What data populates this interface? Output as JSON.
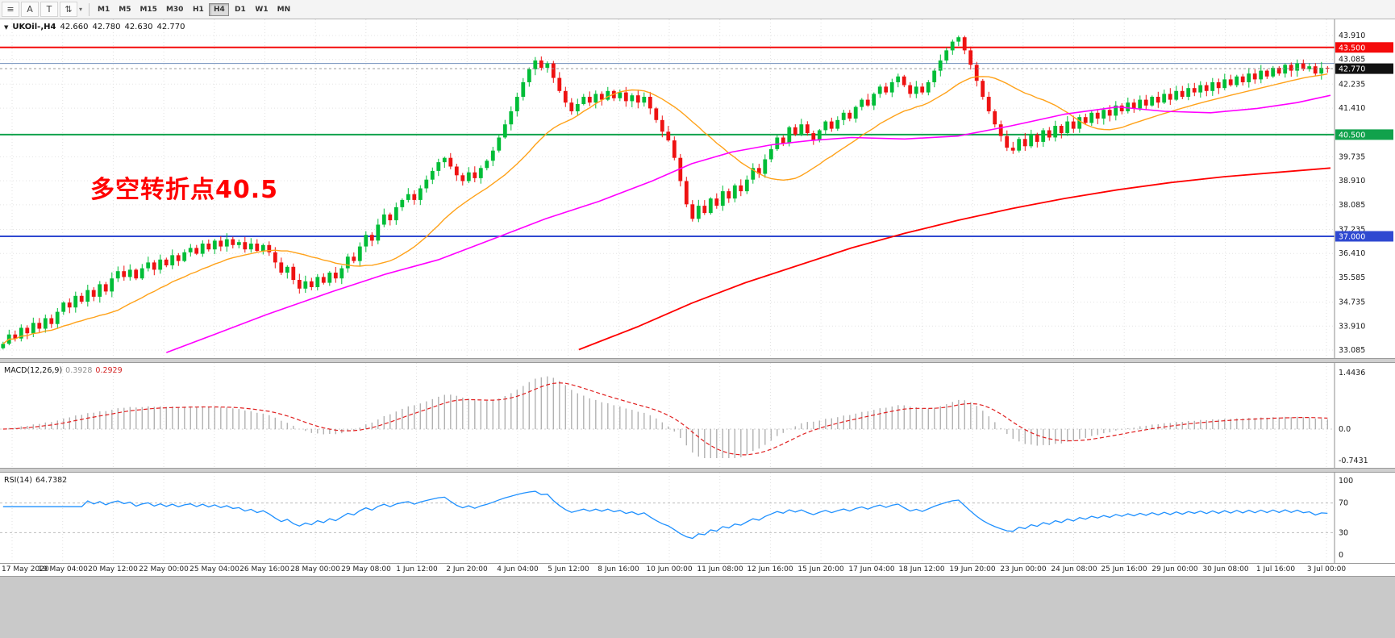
{
  "toolbar": {
    "icons": [
      {
        "name": "menu-icon",
        "glyph": "≡"
      },
      {
        "name": "cursor-icon",
        "glyph": "A"
      },
      {
        "name": "text-icon",
        "glyph": "T"
      },
      {
        "name": "indicators-icon",
        "glyph": "⇅"
      }
    ],
    "caret": "▾",
    "timeframes": [
      "M1",
      "M5",
      "M15",
      "M30",
      "H1",
      "H4",
      "D1",
      "W1",
      "MN"
    ],
    "active_timeframe": "H4"
  },
  "symbol": {
    "prefix": "▼",
    "name": "UKOil-,H4",
    "open": "42.660",
    "high": "42.780",
    "low": "42.630",
    "close": "42.770"
  },
  "chart": {
    "annotation": "多空转折点40.5",
    "price_max": 43.91,
    "price_min": 33.085,
    "axis_labels": [
      43.91,
      43.085,
      42.235,
      41.41,
      39.735,
      38.91,
      38.085,
      37.235,
      36.41,
      35.585,
      34.735,
      33.91,
      33.085
    ],
    "hlines": [
      {
        "price": 43.5,
        "label": "43.500",
        "color": "#f40b0b",
        "width": 2
      },
      {
        "price": 42.95,
        "label": "",
        "color": "#6b8cba",
        "width": 1
      },
      {
        "price": 40.5,
        "label": "40.500",
        "color": "#11a24c",
        "width": 2
      },
      {
        "price": 37.0,
        "label": "37.000",
        "color": "#2f49d1",
        "width": 2
      }
    ],
    "current_price": {
      "value": 42.77,
      "label": "42.770",
      "badge_color": "#111111"
    }
  },
  "chart_data": {
    "type": "candlestick",
    "symbol": "UKOil-",
    "timeframe": "H4",
    "price_axis_range": [
      33.085,
      43.91
    ],
    "closes": [
      33.3,
      33.62,
      33.48,
      33.85,
      33.66,
      34.02,
      33.82,
      34.18,
      33.98,
      34.4,
      34.72,
      34.55,
      34.95,
      34.75,
      35.15,
      34.92,
      35.35,
      35.1,
      35.55,
      35.8,
      35.6,
      35.85,
      35.55,
      35.9,
      36.1,
      35.85,
      36.2,
      36.0,
      36.35,
      36.15,
      36.45,
      36.6,
      36.4,
      36.75,
      36.55,
      36.85,
      36.65,
      36.9,
      36.7,
      36.8,
      36.55,
      36.75,
      36.5,
      36.7,
      36.45,
      36.1,
      35.75,
      35.95,
      35.5,
      35.2,
      35.45,
      35.25,
      35.6,
      35.4,
      35.75,
      35.55,
      35.9,
      36.3,
      36.15,
      36.65,
      37.05,
      36.85,
      37.4,
      37.75,
      37.55,
      38.0,
      38.25,
      38.45,
      38.25,
      38.65,
      38.95,
      39.25,
      39.55,
      39.7,
      39.4,
      39.1,
      38.9,
      39.2,
      39.0,
      39.35,
      39.6,
      39.95,
      40.4,
      40.85,
      41.3,
      41.8,
      42.3,
      42.75,
      43.05,
      42.8,
      42.95,
      42.45,
      42.0,
      41.6,
      41.3,
      41.55,
      41.8,
      41.6,
      41.9,
      41.7,
      42.0,
      41.75,
      41.95,
      41.65,
      41.85,
      41.6,
      41.8,
      41.4,
      41.0,
      40.6,
      40.3,
      39.7,
      38.9,
      38.1,
      37.6,
      38.05,
      37.8,
      38.3,
      38.05,
      38.55,
      38.3,
      38.75,
      38.55,
      38.95,
      39.35,
      39.15,
      39.65,
      40.0,
      40.4,
      40.2,
      40.75,
      40.5,
      40.85,
      40.55,
      40.3,
      40.65,
      40.95,
      40.7,
      41.0,
      41.25,
      41.05,
      41.45,
      41.7,
      41.5,
      41.9,
      42.15,
      41.95,
      42.3,
      42.5,
      42.2,
      41.9,
      42.15,
      41.95,
      42.3,
      42.7,
      43.05,
      43.4,
      43.7,
      43.85,
      43.4,
      42.9,
      42.35,
      41.8,
      41.3,
      40.85,
      40.45,
      40.05,
      39.95,
      40.35,
      40.1,
      40.5,
      40.25,
      40.65,
      40.4,
      40.8,
      40.55,
      40.95,
      40.7,
      41.1,
      40.9,
      41.25,
      41.05,
      41.35,
      41.15,
      41.5,
      41.3,
      41.6,
      41.4,
      41.7,
      41.5,
      41.8,
      41.6,
      41.9,
      41.7,
      42.0,
      41.8,
      42.1,
      41.95,
      42.2,
      42.0,
      42.3,
      42.1,
      42.4,
      42.2,
      42.5,
      42.3,
      42.6,
      42.4,
      42.7,
      42.5,
      42.8,
      42.6,
      42.9,
      42.7,
      42.95,
      42.75,
      42.85,
      42.6,
      42.8,
      42.77
    ],
    "candle_up_color": "#00bd37",
    "candle_down_color": "#ee1212",
    "overlays": {
      "ma_fast": {
        "color": "#ffa21a",
        "period": 20
      },
      "ma_medium": {
        "color": "#ff00ff",
        "points": [
          [
            0.125,
            33.0
          ],
          [
            0.16,
            33.6
          ],
          [
            0.2,
            34.3
          ],
          [
            0.25,
            35.1
          ],
          [
            0.29,
            35.7
          ],
          [
            0.33,
            36.2
          ],
          [
            0.37,
            36.9
          ],
          [
            0.41,
            37.6
          ],
          [
            0.45,
            38.2
          ],
          [
            0.49,
            38.9
          ],
          [
            0.52,
            39.5
          ],
          [
            0.55,
            39.9
          ],
          [
            0.58,
            40.15
          ],
          [
            0.61,
            40.3
          ],
          [
            0.64,
            40.4
          ],
          [
            0.68,
            40.35
          ],
          [
            0.72,
            40.45
          ],
          [
            0.76,
            40.8
          ],
          [
            0.8,
            41.2
          ],
          [
            0.84,
            41.45
          ],
          [
            0.875,
            41.3
          ],
          [
            0.91,
            41.25
          ],
          [
            0.945,
            41.4
          ],
          [
            0.975,
            41.6
          ],
          [
            1.0,
            41.85
          ]
        ]
      },
      "ma_slow": {
        "color": "#ff0000",
        "points": [
          [
            0.435,
            33.1
          ],
          [
            0.48,
            33.9
          ],
          [
            0.52,
            34.7
          ],
          [
            0.56,
            35.4
          ],
          [
            0.6,
            36.0
          ],
          [
            0.64,
            36.6
          ],
          [
            0.68,
            37.1
          ],
          [
            0.72,
            37.55
          ],
          [
            0.76,
            37.95
          ],
          [
            0.8,
            38.3
          ],
          [
            0.84,
            38.6
          ],
          [
            0.88,
            38.85
          ],
          [
            0.92,
            39.05
          ],
          [
            0.96,
            39.2
          ],
          [
            1.0,
            39.35
          ]
        ]
      }
    },
    "macd": {
      "label": "MACD(12,26,9)",
      "value_main": "0.3928",
      "value_signal": "0.2929",
      "fast": 12,
      "slow": 26,
      "signal": 9,
      "axis_max": 1.4436,
      "axis_min": -0.7431,
      "axis_labels": [
        "1.4436",
        "0.0",
        "-0.7431"
      ],
      "hist_color": "#b2b2b2",
      "signal_color": "#e02020"
    },
    "rsi": {
      "label": "RSI(14)",
      "value": "64.7382",
      "period": 14,
      "levels": [
        70,
        30
      ],
      "axis_labels": [
        "100",
        "70",
        "30",
        "0"
      ],
      "line_color": "#1e90ff"
    }
  },
  "time_axis": [
    "17 May 2020",
    "19 May 04:00",
    "20 May 12:00",
    "22 May 00:00",
    "25 May 04:00",
    "26 May 16:00",
    "28 May 00:00",
    "29 May 08:00",
    "1 Jun 12:00",
    "2 Jun 20:00",
    "4 Jun 04:00",
    "5 Jun 12:00",
    "8 Jun 16:00",
    "10 Jun 00:00",
    "11 Jun 08:00",
    "12 Jun 16:00",
    "15 Jun 20:00",
    "17 Jun 04:00",
    "18 Jun 12:00",
    "19 Jun 20:00",
    "23 Jun 00:00",
    "24 Jun 08:00",
    "25 Jun 16:00",
    "29 Jun 00:00",
    "30 Jun 08:00",
    "1 Jul 16:00",
    "3 Jul 00:00"
  ]
}
